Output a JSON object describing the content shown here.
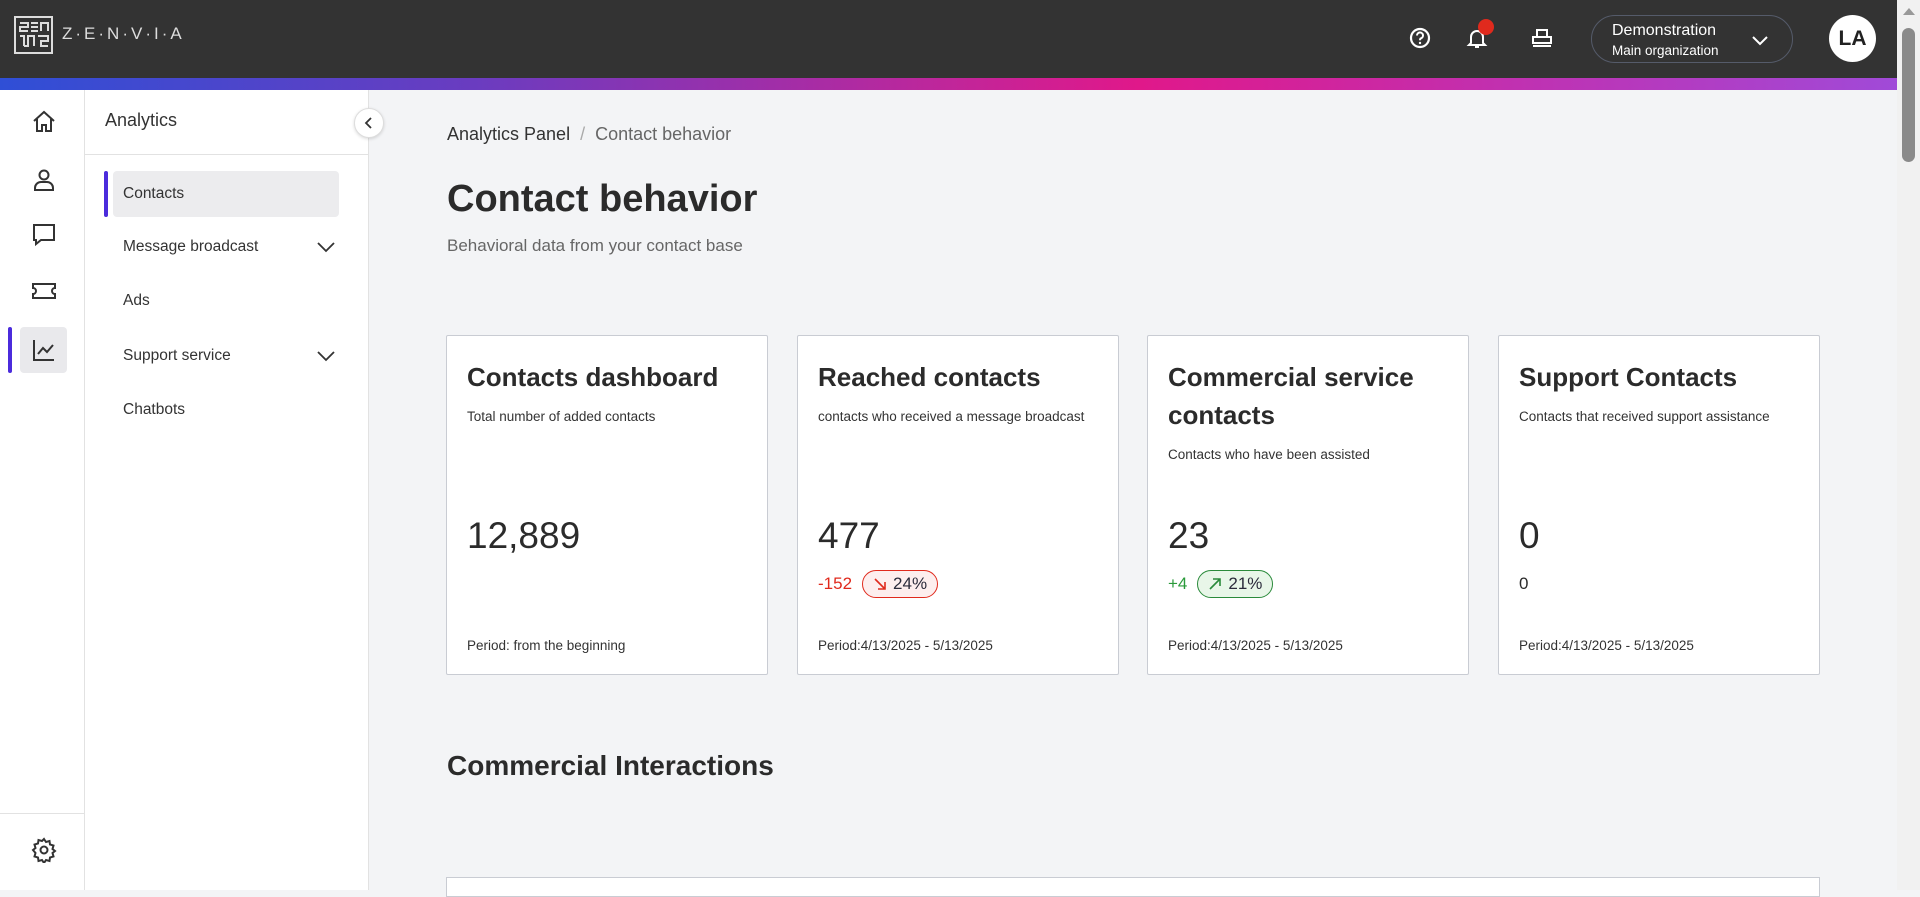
{
  "header": {
    "brand": "Z·E·N·V·I·A",
    "org_name": "Demonstration",
    "org_sub": "Main organization",
    "avatar": "LA",
    "notification_dot_color": "#e02a1d"
  },
  "sidebar": {
    "title": "Analytics",
    "items": [
      {
        "label": "Contacts",
        "active": true
      },
      {
        "label": "Message broadcast",
        "expandable": true
      },
      {
        "label": "Ads"
      },
      {
        "label": "Support service",
        "expandable": true
      },
      {
        "label": "Chatbots"
      }
    ]
  },
  "rail": {
    "items": [
      "home-icon",
      "user-icon",
      "chat-icon",
      "ticket-icon",
      "chart-icon"
    ],
    "bottom": "gear-icon",
    "active": "chart-icon"
  },
  "breadcrumb": {
    "root": "Analytics Panel",
    "sep": "/",
    "current": "Contact behavior"
  },
  "page": {
    "title": "Contact behavior",
    "subtitle": "Behavioral data from your contact base"
  },
  "cards": [
    {
      "title": "Contacts dashboard",
      "subtitle": "Total number of added contacts",
      "value": "12,889",
      "period": "Period: from the beginning"
    },
    {
      "title": "Reached contacts",
      "subtitle": "contacts who received a message broadcast",
      "value": "477",
      "delta": "-152",
      "pct": "24%",
      "trend": "down",
      "period": "Period:4/13/2025 - 5/13/2025"
    },
    {
      "title": "Commercial service contacts",
      "subtitle": "Contacts who have been assisted",
      "value": "23",
      "delta": "+4",
      "pct": "21%",
      "trend": "up",
      "period": "Period:4/13/2025 - 5/13/2025"
    },
    {
      "title": "Support Contacts",
      "subtitle": "Contacts that received support assistance",
      "value": "0",
      "delta": "0",
      "period": "Period:4/13/2025 - 5/13/2025"
    }
  ],
  "section": {
    "title": "Commercial Interactions"
  },
  "colors": {
    "accent": "#4b2bdc",
    "down": "#e02a1d",
    "up": "#2a8a3a",
    "topbar": "#333333"
  }
}
